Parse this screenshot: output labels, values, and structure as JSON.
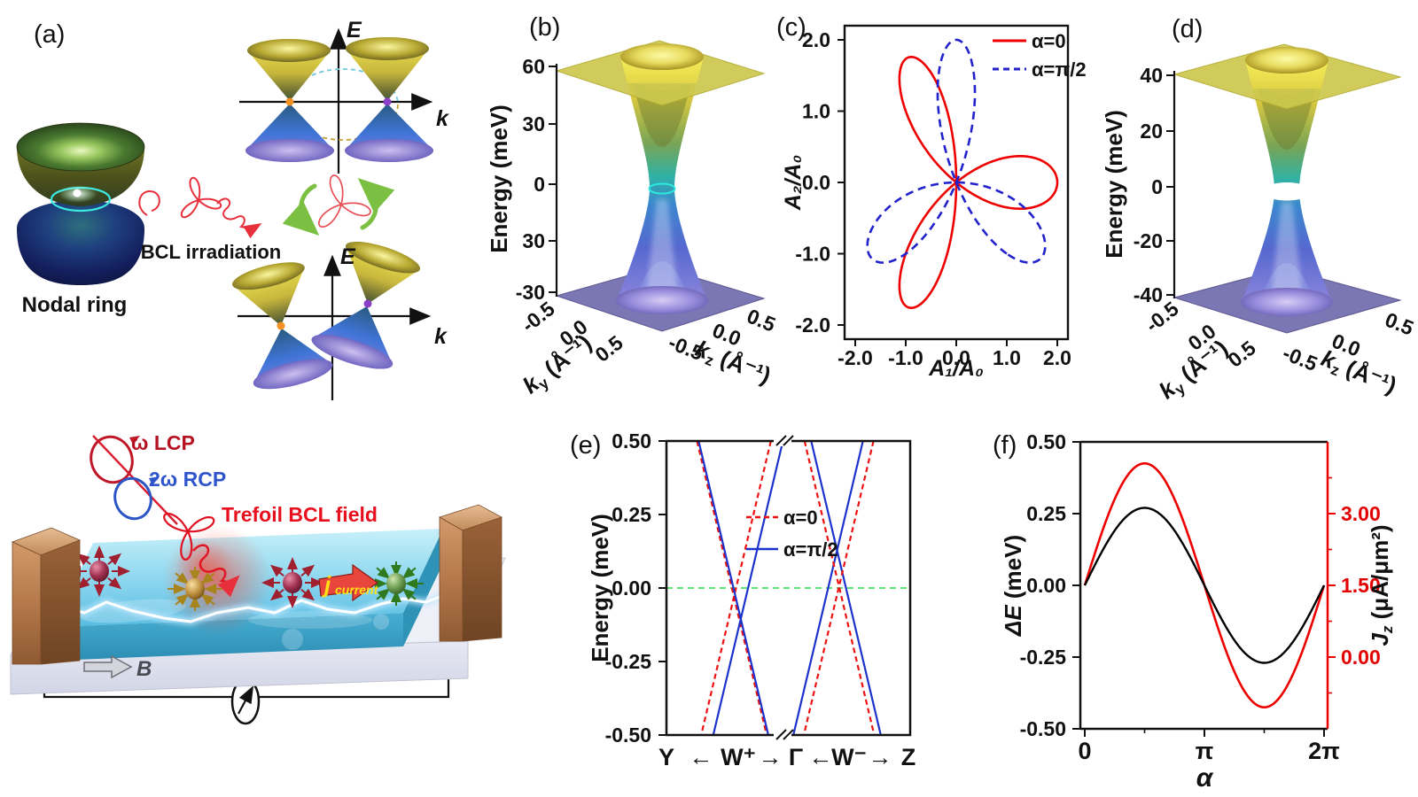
{
  "colors": {
    "accent_red": "#e81111",
    "accent_blue": "#1b33cc",
    "fermi_green": "#2fd94a",
    "plane_top": "#cdc84e",
    "plane_bottom": "#7b76b4",
    "copper": "#b5794a",
    "sample_blue": "#63c3e8",
    "laser_red": "#e02028"
  },
  "panel_a": {
    "label": "(a)",
    "caption": "Nodal ring",
    "irradiation_caption": "BCL irradiation",
    "axis_energy": "E",
    "axis_momentum": "k"
  },
  "panel_b": {
    "label": "(b)",
    "zlabel": "Energy (meV)",
    "zticks": [
      "60",
      "30",
      "0",
      "30",
      "-30"
    ],
    "ky": {
      "base": "k",
      "sub": "y",
      "unit": " (Å⁻¹)"
    },
    "kz": {
      "base": "k",
      "sub": "z",
      "unit": " (Å⁻¹)"
    },
    "kyticks": [
      "-0.5",
      "0.0",
      "0.5"
    ],
    "kzticks": [
      "-0.5",
      "0.0",
      "0.5"
    ]
  },
  "panel_d": {
    "label": "(d)",
    "zlabel": "Energy (meV)",
    "zticks": [
      "40",
      "20",
      "0",
      "-20",
      "-40"
    ],
    "ky": {
      "base": "k",
      "sub": "y",
      "unit": " (Å⁻¹)"
    },
    "kz": {
      "base": "k",
      "sub": "z",
      "unit": " (Å⁻¹)"
    },
    "kyticks": [
      "-0.5",
      "0.0",
      "0.5"
    ],
    "kzticks": [
      "-0.5",
      "0.0",
      "0.5"
    ]
  },
  "device": {
    "light_labels": {
      "lcp": "ω LCP",
      "rcp": "2ω RCP",
      "trefoil": "Trefoil BCL field"
    },
    "magnetic_field_label": "B",
    "current_label": {
      "j": "j",
      "word": "current"
    }
  },
  "chart_data": [
    {
      "id": "c",
      "type": "line",
      "panel_label": "(c)",
      "xlabel": "A₁/A₀",
      "ylabel": "A₂/A₀",
      "xlim": [
        -2.2,
        2.2
      ],
      "ylim": [
        -2.2,
        2.2
      ],
      "xtick_labels": [
        "-2.0",
        "-1.0",
        "0.0",
        "1.0",
        "2.0"
      ],
      "ytick_labels": [
        "2.0",
        "1.0",
        "0.0",
        "-1.0",
        "-2.0"
      ],
      "parametric": "A1=cos(t)+cos(2t+α), A2=sin(t)−sin(2t+α), scaled so max |A|=2",
      "series": [
        {
          "name": "α=0",
          "alpha": 0,
          "color": "#ee0000",
          "style": "solid",
          "petal_angles_deg": [
            0,
            120,
            240
          ],
          "petal_amplitude": 2
        },
        {
          "name": "α=π/2",
          "alpha": 1.5707963,
          "color": "#2222cc",
          "style": "dashed",
          "petal_angles_deg": [
            90,
            210,
            330
          ],
          "petal_amplitude": 2
        }
      ]
    },
    {
      "id": "e",
      "type": "line",
      "panel_label": "(e)",
      "ylabel": "Energy (meV)",
      "ylim": [
        -0.5,
        0.5
      ],
      "ytick_labels": [
        "0.50",
        "0.25",
        "0.00",
        "-0.25",
        "-0.50"
      ],
      "xtick_labels": [
        "Y",
        "←",
        "W⁺",
        "→",
        "Γ",
        "←",
        "W⁻",
        "→",
        "Z"
      ],
      "legend": [
        "α=0",
        "α=π/2"
      ],
      "fermi_level_meV": 0.0,
      "band_slope_meV_per_frac": 3.5,
      "crossings": [
        {
          "series": "α=0",
          "style": "dashed",
          "color": "#ee1111",
          "x_frac": 0.277,
          "energy_meV": -0.03
        },
        {
          "series": "α=π/2",
          "style": "solid",
          "color": "#1b33cc",
          "x_frac": 0.305,
          "energy_meV": -0.105
        },
        {
          "series": "α=π/2",
          "style": "solid",
          "color": "#1b33cc",
          "x_frac": 0.7,
          "energy_meV": 0.128
        },
        {
          "series": "α=0",
          "style": "dashed",
          "color": "#ee1111",
          "x_frac": 0.708,
          "energy_meV": 0.005
        }
      ]
    },
    {
      "id": "f",
      "type": "line",
      "panel_label": "(f)",
      "xlabel": "α",
      "xtick_labels": [
        "0",
        "π",
        "2π"
      ],
      "x_range": [
        0,
        6.2832
      ],
      "left_axis": {
        "label_em": "ΔE",
        "label_unit": " (meV)",
        "tick_labels": [
          "0.50",
          "0.25",
          "0.00",
          "-0.25",
          "-0.50"
        ],
        "color": "#000000"
      },
      "right_axis": {
        "sym": "J",
        "sub": "z",
        "unit": " (μA/μm²)",
        "tick_labels": [
          "3.00",
          "1.50",
          "0.00"
        ],
        "color": "#ee0000"
      },
      "series": [
        {
          "name": "ΔE",
          "axis": "left",
          "color": "#000000",
          "form": "A·sin(α)",
          "amplitude": 0.27
        },
        {
          "name": "Jz",
          "axis": "right",
          "color": "#ee0000",
          "form": "offset + A·sin(α)",
          "offset": 1.5,
          "amplitude": 2.55
        }
      ]
    }
  ]
}
